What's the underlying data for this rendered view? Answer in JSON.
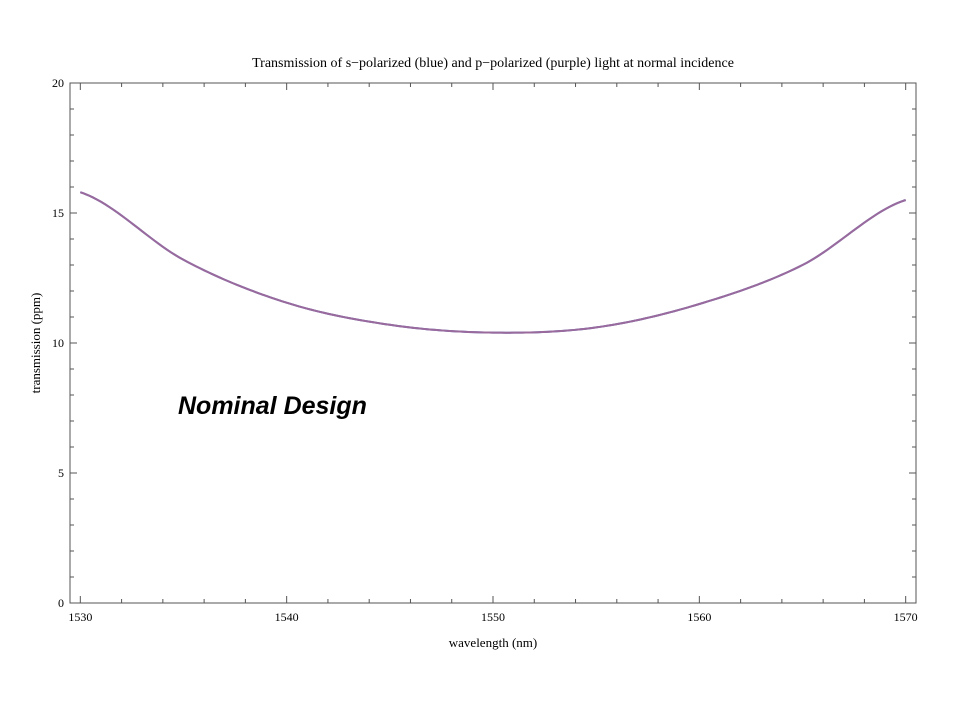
{
  "chart_data": {
    "type": "line",
    "title": "Transmission of s−polarized (blue) and p−polarized (purple) light at normal incidence",
    "xlabel": "wavelength (nm)",
    "ylabel": "transmission (ppm)",
    "xlim": [
      1529.5,
      1570.5
    ],
    "ylim": [
      0,
      20
    ],
    "x_ticks": [
      1530,
      1540,
      1550,
      1560,
      1570
    ],
    "x_tick_labels": [
      "1530",
      "1540",
      "1550",
      "1560",
      "1570"
    ],
    "y_ticks": [
      0,
      5,
      10,
      15,
      20
    ],
    "y_tick_labels": [
      "0",
      "5",
      "10",
      "15",
      "20"
    ],
    "grid": false,
    "series": [
      {
        "color": "#4b6ec2",
        "x": [
          1530,
          1535,
          1540,
          1545,
          1550,
          1555,
          1560,
          1565,
          1570
        ],
        "y": [
          15.8,
          13.2,
          11.55,
          10.7,
          10.4,
          10.6,
          11.5,
          13.0,
          15.5
        ]
      },
      {
        "color": "#9b6a9d",
        "x": [
          1530,
          1535,
          1540,
          1545,
          1550,
          1555,
          1560,
          1565,
          1570
        ],
        "y": [
          15.8,
          13.2,
          11.55,
          10.7,
          10.4,
          10.6,
          11.5,
          13.0,
          15.5
        ]
      }
    ],
    "annotation": "Nominal Design"
  }
}
